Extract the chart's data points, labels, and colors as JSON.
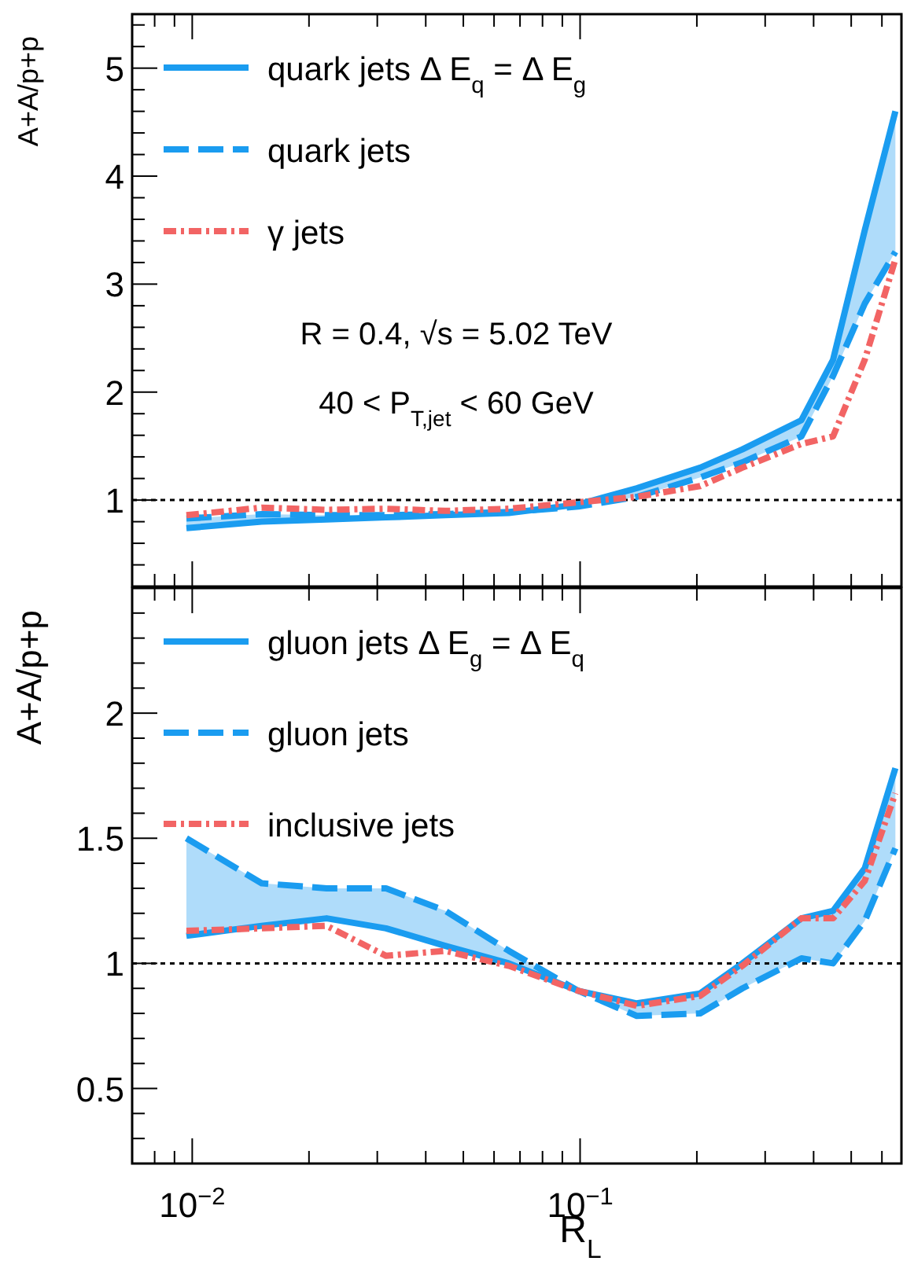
{
  "chart_data": [
    {
      "type": "line",
      "ylabel": "A+A/p+p",
      "xlim": [
        0.007,
        0.68
      ],
      "ylim": [
        0.2,
        5.5
      ],
      "log": "x",
      "legend": "top left",
      "tick_labels": "y",
      "x": [
        0.00966,
        0.0151,
        0.0222,
        0.0316,
        0.0449,
        0.0655,
        0.099,
        0.14,
        0.204,
        0.262,
        0.372,
        0.449,
        0.542,
        0.65
      ],
      "xticks": [
        {
          "value": 0.008,
          "label": null
        },
        {
          "value": 0.009,
          "label": null
        },
        {
          "value": 0.01,
          "label": null
        },
        {
          "value": 0.02,
          "label": null
        },
        {
          "value": 0.03,
          "label": null
        },
        {
          "value": 0.04,
          "label": null
        },
        {
          "value": 0.05,
          "label": null
        },
        {
          "value": 0.06,
          "label": null
        },
        {
          "value": 0.07,
          "label": null
        },
        {
          "value": 0.08,
          "label": null
        },
        {
          "value": 0.09,
          "label": null
        },
        {
          "value": 0.1,
          "label": null
        },
        {
          "value": 0.2,
          "label": null
        },
        {
          "value": 0.3,
          "label": null
        },
        {
          "value": 0.4,
          "label": null
        },
        {
          "value": 0.5,
          "label": null
        },
        {
          "value": 0.6,
          "label": null
        }
      ],
      "yticks": [
        {
          "value": 0.4,
          "label": null
        },
        {
          "value": 0.6,
          "label": null
        },
        {
          "value": 0.8,
          "label": null
        },
        1,
        {
          "value": 1.2,
          "label": null
        },
        {
          "value": 1.4,
          "label": null
        },
        {
          "value": 1.6,
          "label": null
        },
        {
          "value": 1.8,
          "label": null
        },
        2,
        {
          "value": 2.2,
          "label": null
        },
        {
          "value": 2.4,
          "label": null
        },
        {
          "value": 2.6,
          "label": null
        },
        {
          "value": 2.8,
          "label": null
        },
        3,
        {
          "value": 3.2,
          "label": null
        },
        {
          "value": 3.4,
          "label": null
        },
        {
          "value": 3.6,
          "label": null
        },
        {
          "value": 3.8,
          "label": null
        },
        4,
        {
          "value": 4.2,
          "label": null
        },
        {
          "value": 4.4,
          "label": null
        },
        {
          "value": 4.6,
          "label": null
        },
        {
          "value": 4.8,
          "label": null
        },
        5,
        {
          "value": 5.2,
          "label": null
        },
        {
          "value": 5.4,
          "label": null
        }
      ],
      "series": [
        {
          "name": "quark jets  Δ E$_{q}$ = Δ E$_{g}$",
          "color": "#1a9cf0",
          "line_style": "solid",
          "values": [
            0.74,
            0.8,
            0.82,
            0.84,
            0.86,
            0.88,
            0.96,
            1.11,
            1.3,
            1.47,
            1.74,
            2.3,
            3.5,
            4.6
          ],
          "lower": [
            0.83,
            0.87,
            0.86,
            0.86,
            0.87,
            0.89,
            0.94,
            1.03,
            1.21,
            1.35,
            1.59,
            2.15,
            2.82,
            3.3
          ],
          "upper": [
            0.74,
            0.8,
            0.82,
            0.84,
            0.86,
            0.88,
            0.96,
            1.11,
            1.3,
            1.47,
            1.74,
            2.3,
            3.5,
            4.6
          ]
        },
        {
          "name": "quark jets",
          "color": "#1a9cf0",
          "line_style": "dashed",
          "values": [
            0.83,
            0.87,
            0.86,
            0.86,
            0.87,
            0.89,
            0.94,
            1.03,
            1.21,
            1.35,
            1.59,
            2.15,
            2.82,
            3.3
          ]
        },
        {
          "name": "γ jets",
          "color": "#f26464",
          "line_style": "dotted",
          "values": [
            0.86,
            0.93,
            0.91,
            0.92,
            0.9,
            0.92,
            0.98,
            1.03,
            1.13,
            1.3,
            1.52,
            1.59,
            2.3,
            3.23
          ]
        }
      ],
      "ref_lines": [
        {
          "axis": "y",
          "value": 1,
          "color": "#000000",
          "line_style": "dotted"
        }
      ],
      "annotations": [
        "R = 0.4, √s = 5.02 TeV",
        "40 < P$_{T,jet}$ < 60 GeV"
      ]
    },
    {
      "type": "line",
      "ylabel": "A+A/p+p",
      "xlabel": "R$_{L}$",
      "xlim": [
        0.007,
        0.68
      ],
      "ylim": [
        0.2,
        2.5
      ],
      "log": "x",
      "legend": "top left",
      "x": [
        0.00966,
        0.0151,
        0.0222,
        0.0316,
        0.0449,
        0.0655,
        0.099,
        0.14,
        0.204,
        0.262,
        0.372,
        0.449,
        0.542,
        0.65
      ],
      "xticks": [
        {
          "value": 0.008,
          "label": null
        },
        {
          "value": 0.009,
          "label": null
        },
        {
          "value": 0.01,
          "label": "10$^{−2}$"
        },
        {
          "value": 0.02,
          "label": null
        },
        {
          "value": 0.03,
          "label": null
        },
        {
          "value": 0.04,
          "label": null
        },
        {
          "value": 0.05,
          "label": null
        },
        {
          "value": 0.06,
          "label": null
        },
        {
          "value": 0.07,
          "label": null
        },
        {
          "value": 0.08,
          "label": null
        },
        {
          "value": 0.09,
          "label": null
        },
        {
          "value": 0.1,
          "label": "10$^{−1}$"
        },
        {
          "value": 0.2,
          "label": null
        },
        {
          "value": 0.3,
          "label": null
        },
        {
          "value": 0.4,
          "label": null
        },
        {
          "value": 0.5,
          "label": null
        },
        {
          "value": 0.6,
          "label": null
        }
      ],
      "yticks": [
        {
          "value": 0.3,
          "label": null
        },
        {
          "value": 0.4,
          "label": null
        },
        0.5,
        {
          "value": 0.6,
          "label": null
        },
        {
          "value": 0.7,
          "label": null
        },
        {
          "value": 0.8,
          "label": null
        },
        {
          "value": 0.9,
          "label": null
        },
        1,
        {
          "value": 1.1,
          "label": null
        },
        {
          "value": 1.2,
          "label": null
        },
        {
          "value": 1.3,
          "label": null
        },
        {
          "value": 1.4,
          "label": null
        },
        1.5,
        {
          "value": 1.6,
          "label": null
        },
        {
          "value": 1.7,
          "label": null
        },
        {
          "value": 1.8,
          "label": null
        },
        {
          "value": 1.9,
          "label": null
        },
        2,
        {
          "value": 2.1,
          "label": null
        },
        {
          "value": 2.2,
          "label": null
        },
        {
          "value": 2.3,
          "label": null
        },
        {
          "value": 2.4,
          "label": null
        }
      ],
      "series": [
        {
          "name": "gluon jets Δ E$_{g}$ = Δ E$_{q}$",
          "color": "#1a9cf0",
          "line_style": "solid",
          "values": [
            1.11,
            1.15,
            1.18,
            1.14,
            1.07,
            1.0,
            0.89,
            0.84,
            0.88,
            1.0,
            1.18,
            1.21,
            1.38,
            1.78
          ],
          "lower": [
            1.5,
            1.32,
            1.3,
            1.3,
            1.21,
            1.05,
            0.89,
            0.79,
            0.8,
            0.9,
            1.02,
            1.0,
            1.17,
            1.46
          ],
          "upper": [
            1.11,
            1.15,
            1.18,
            1.14,
            1.07,
            1.0,
            0.89,
            0.84,
            0.88,
            1.0,
            1.18,
            1.21,
            1.38,
            1.78
          ]
        },
        {
          "name": "gluon jets",
          "color": "#1a9cf0",
          "line_style": "dashed",
          "values": [
            1.5,
            1.32,
            1.3,
            1.3,
            1.21,
            1.05,
            0.89,
            0.79,
            0.8,
            0.9,
            1.02,
            1.0,
            1.17,
            1.46
          ]
        },
        {
          "name": "inclusive jets",
          "color": "#f26464",
          "line_style": "dotted",
          "values": [
            1.13,
            1.14,
            1.15,
            1.03,
            1.05,
            0.99,
            0.89,
            0.83,
            0.87,
            0.99,
            1.18,
            1.18,
            1.33,
            1.68
          ]
        }
      ],
      "ref_lines": [
        {
          "axis": "y",
          "value": 1,
          "color": "#000000",
          "line_style": "dotted"
        }
      ]
    }
  ]
}
